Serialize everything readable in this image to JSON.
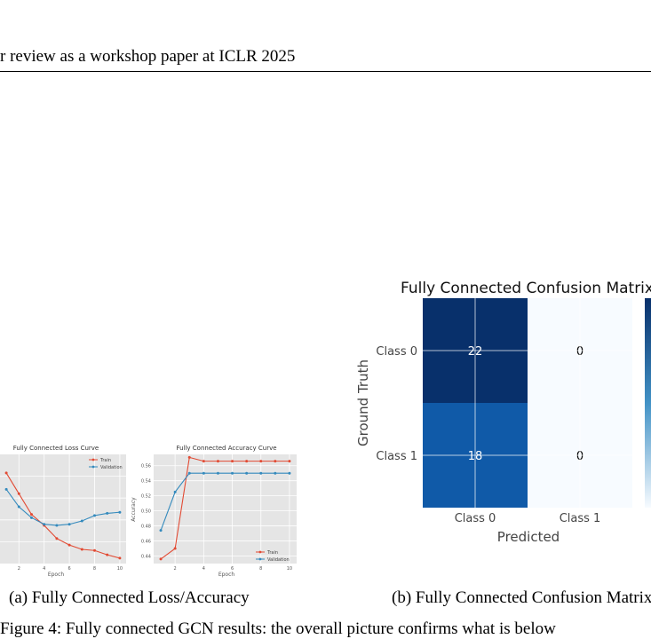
{
  "header": {
    "text": "r review as a workshop paper at ICLR 2025"
  },
  "captions": {
    "a": "(a)  Fully Connected Loss/Accuracy",
    "b": "(b)  Fully Connected Confusion Matrix"
  },
  "trailing_text": "Figure 4: Fully connected GCN results: the overall picture confirms what is below",
  "chart_data": [
    {
      "type": "line",
      "title": "Fully Connected Loss Curve",
      "xlabel": "Epoch",
      "ylabel": "",
      "x": [
        1,
        2,
        3,
        4,
        5,
        6,
        7,
        8,
        9,
        10
      ],
      "xticks": [
        "2",
        "4",
        "6",
        "8",
        "10"
      ],
      "xlim": [
        0.5,
        10.5
      ],
      "ylim": [
        0,
        1
      ],
      "grid": true,
      "legend_position": "top-right",
      "series": [
        {
          "name": "Train",
          "color": "#e24a33",
          "values": [
            0.83,
            0.64,
            0.45,
            0.35,
            0.23,
            0.17,
            0.13,
            0.12,
            0.08,
            0.05
          ]
        },
        {
          "name": "Validation",
          "color": "#348abd",
          "values": [
            0.68,
            0.52,
            0.42,
            0.36,
            0.35,
            0.36,
            0.39,
            0.44,
            0.46,
            0.47
          ]
        }
      ]
    },
    {
      "type": "line",
      "title": "Fully Connected Accuracy Curve",
      "xlabel": "Epoch",
      "ylabel": "Accuracy",
      "x": [
        1,
        2,
        3,
        4,
        5,
        6,
        7,
        8,
        9,
        10
      ],
      "xticks": [
        "2",
        "4",
        "6",
        "8",
        "10"
      ],
      "yticks": [
        "0.44",
        "0.46",
        "0.48",
        "0.50",
        "0.52",
        "0.54",
        "0.56"
      ],
      "xlim": [
        0.5,
        10.5
      ],
      "ylim": [
        0.43,
        0.575
      ],
      "grid": true,
      "legend_position": "bottom-right",
      "series": [
        {
          "name": "Train",
          "color": "#e24a33",
          "values": [
            0.436,
            0.45,
            0.571,
            0.566,
            0.566,
            0.566,
            0.566,
            0.566,
            0.566,
            0.566
          ]
        },
        {
          "name": "Validation",
          "color": "#348abd",
          "values": [
            0.474,
            0.525,
            0.55,
            0.55,
            0.55,
            0.55,
            0.55,
            0.55,
            0.55,
            0.55
          ]
        }
      ]
    },
    {
      "type": "heatmap",
      "title": "Fully Connected Confusion Matrix",
      "xlabel": "Predicted",
      "ylabel": "Ground Truth",
      "x_categories": [
        "Class 0",
        "Class 1"
      ],
      "y_categories": [
        "Class 0",
        "Class 1"
      ],
      "values": [
        [
          22,
          0
        ],
        [
          18,
          0
        ]
      ],
      "colormap": "Blues",
      "colors": {
        "low": "#f7fbff",
        "high": "#08306b"
      }
    }
  ]
}
